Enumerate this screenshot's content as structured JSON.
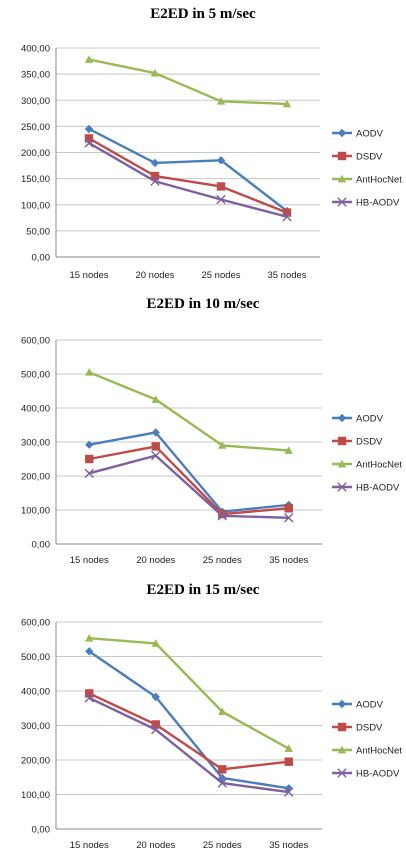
{
  "chart_data": [
    {
      "type": "line",
      "title": "E2ED in 5 m/sec",
      "categories": [
        "15 nodes",
        "20 nodes",
        "25 nodes",
        "35 nodes"
      ],
      "ylim": [
        0,
        400
      ],
      "ytick_step": 50,
      "ytick_labels": [
        "0,00",
        "50,00",
        "100,00",
        "150,00",
        "200,00",
        "250,00",
        "300,00",
        "350,00",
        "400,00"
      ],
      "grid": true,
      "legend": "right",
      "series": [
        {
          "name": "AODV",
          "values": [
            245,
            180,
            185,
            88
          ]
        },
        {
          "name": "DSDV",
          "values": [
            227,
            155,
            135,
            85
          ]
        },
        {
          "name": "AntHocNet",
          "values": [
            378,
            352,
            298,
            293
          ]
        },
        {
          "name": "HB-AODV",
          "values": [
            218,
            145,
            110,
            77
          ]
        }
      ]
    },
    {
      "type": "line",
      "title": "E2ED in 10 m/sec",
      "categories": [
        "15 nodes",
        "20 nodes",
        "25 nodes",
        "35 nodes"
      ],
      "ylim": [
        0,
        600
      ],
      "ytick_step": 100,
      "ytick_labels": [
        "0,00",
        "100,00",
        "200,00",
        "300,00",
        "400,00",
        "500,00",
        "600,00"
      ],
      "grid": true,
      "legend": "right",
      "series": [
        {
          "name": "AODV",
          "values": [
            292,
            328,
            95,
            115
          ]
        },
        {
          "name": "DSDV",
          "values": [
            250,
            287,
            88,
            105
          ]
        },
        {
          "name": "AntHocNet",
          "values": [
            505,
            425,
            290,
            275
          ]
        },
        {
          "name": "HB-AODV",
          "values": [
            208,
            260,
            83,
            77
          ]
        }
      ]
    },
    {
      "type": "line",
      "title": "E2ED in 15 m/sec",
      "categories": [
        "15 nodes",
        "20 nodes",
        "25 nodes",
        "35 nodes"
      ],
      "ylim": [
        0,
        600
      ],
      "ytick_step": 100,
      "ytick_labels": [
        "0,00",
        "100,00",
        "200,00",
        "300,00",
        "400,00",
        "500,00",
        "600,00"
      ],
      "grid": true,
      "legend": "right",
      "series": [
        {
          "name": "AODV",
          "values": [
            515,
            383,
            148,
            118
          ]
        },
        {
          "name": "DSDV",
          "values": [
            393,
            303,
            173,
            195
          ]
        },
        {
          "name": "AntHocNet",
          "values": [
            553,
            538,
            340,
            233
          ]
        },
        {
          "name": "HB-AODV",
          "values": [
            380,
            288,
            133,
            107
          ]
        }
      ]
    }
  ],
  "colors": {
    "AODV": "#4a7ebb",
    "DSDV": "#be4b48",
    "AntHocNet": "#98b954",
    "HB-AODV": "#7d60a0",
    "grid": "#c8c8c8",
    "axis": "#888888"
  },
  "markers": {
    "AODV": "diamond",
    "DSDV": "square",
    "AntHocNet": "triangle",
    "HB-AODV": "x"
  }
}
